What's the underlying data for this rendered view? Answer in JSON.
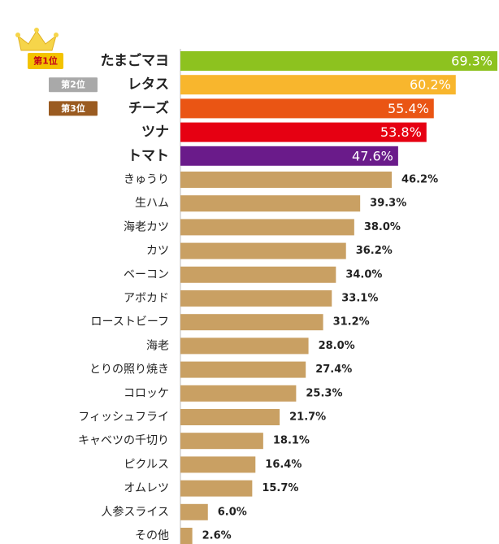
{
  "chart_data": {
    "type": "bar",
    "orientation": "horizontal",
    "xlim": [
      0,
      70
    ],
    "categories": [
      "たまごマヨ",
      "レタス",
      "チーズ",
      "ツナ",
      "トマト",
      "きゅうり",
      "生ハム",
      "海老カツ",
      "カツ",
      "ベーコン",
      "アボカド",
      "ローストビーフ",
      "海老",
      "とりの照り焼き",
      "コロッケ",
      "フィッシュフライ",
      "キャベツの千切り",
      "ピクルス",
      "オムレツ",
      "人参スライス",
      "その他"
    ],
    "values": [
      69.3,
      60.2,
      55.4,
      53.8,
      47.6,
      46.2,
      39.3,
      38.0,
      36.2,
      34.0,
      33.1,
      31.2,
      28.0,
      27.4,
      25.3,
      21.7,
      18.1,
      16.4,
      15.7,
      6.0,
      2.6
    ],
    "value_labels": [
      "69.3%",
      "60.2%",
      "55.4%",
      "53.8%",
      "47.6%",
      "46.2%",
      "39.3%",
      "38.0%",
      "36.2%",
      "34.0%",
      "33.1%",
      "31.2%",
      "28.0%",
      "27.4%",
      "25.3%",
      "21.7%",
      "18.1%",
      "16.4%",
      "15.7%",
      "6.0%",
      "2.6%"
    ],
    "bar_colors": [
      "#8dc21f",
      "#f8b62d",
      "#ea5514",
      "#e60012",
      "#6a1b8a"
    ],
    "default_bar_color": "#c9a063",
    "top_label_colors": [
      "#e60012",
      "#e60012",
      "#e60012",
      "#111111",
      "#111111"
    ],
    "rank_badges": [
      "第1位",
      "第2位",
      "第3位"
    ],
    "rank_badge_colors": [
      "#f3c300",
      "#a9a9a9",
      "#9a5b21"
    ]
  }
}
